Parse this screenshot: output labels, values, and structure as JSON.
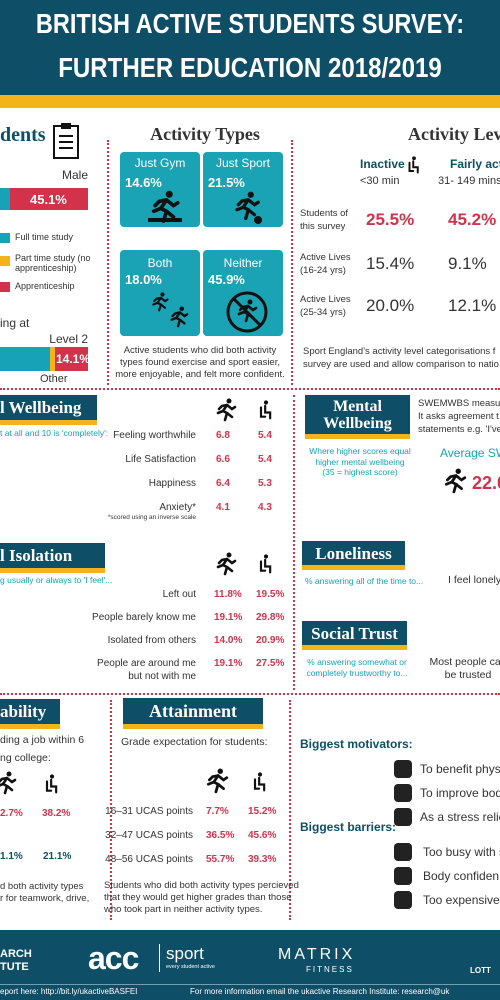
{
  "header": {
    "title_line1": "BRITISH ACTIVE STUDENTS SURVEY:",
    "title_line2": "FURTHER EDUCATION 2018/2019"
  },
  "students": {
    "title": "dents",
    "gender_label": "Male",
    "gender_value": "45.1%",
    "legend": [
      "Full time study",
      "Part time study (no apprenticeship)",
      "Apprenticeship"
    ],
    "level_heading": "ing at",
    "level_label": "Level 2",
    "level_value": "14.1%",
    "other_label": "Other"
  },
  "activity_types": {
    "title": "Activity Types",
    "boxes": [
      {
        "label": "Just Gym",
        "value": "14.6%"
      },
      {
        "label": "Just Sport",
        "value": "21.5%"
      },
      {
        "label": "Both",
        "value": "18.0%"
      },
      {
        "label": "Neither",
        "value": "45.9%"
      }
    ],
    "caption": "Active students who did both activity types found exercise and sport easier, more enjoyable, and felt more confident."
  },
  "activity_levels": {
    "title": "Activity Lev",
    "columns": [
      {
        "label": "Inactive",
        "range": "<30 min"
      },
      {
        "label": "Fairly active",
        "range": "31- 149 mins"
      }
    ],
    "rows": [
      {
        "label": "Students of this survey",
        "values": [
          "25.5%",
          "45.2%"
        ]
      },
      {
        "label": "Active Lives (16-24 yrs)",
        "values": [
          "15.4%",
          "9.1%"
        ]
      },
      {
        "label": "Active Lives (25-34 yrs)",
        "values": [
          "20.0%",
          "12.1%"
        ]
      }
    ],
    "caption": [
      "Sport England's activity level categorisations f",
      "survey are used and allow comparison to natio"
    ]
  },
  "wellbeing": {
    "title": "l Wellbeing",
    "subtitle": "t at all and 10 is 'completely':",
    "rows": [
      {
        "label": "Feeling worthwhile",
        "values": [
          "6.8",
          "5.4"
        ]
      },
      {
        "label": "Life Satisfaction",
        "values": [
          "6.6",
          "5.4"
        ]
      },
      {
        "label": "Happiness",
        "values": [
          "6.4",
          "5.3"
        ]
      },
      {
        "label": "Anxiety*",
        "values": [
          "4.1",
          "4.3"
        ]
      }
    ],
    "footnote": "*scored using an inverse scale"
  },
  "mental_wellbeing": {
    "title": [
      "Mental",
      "Wellbeing"
    ],
    "text": [
      "SWEMWBS measu",
      "It asks agreement t",
      "statements e.g. 'I've"
    ],
    "note": [
      "Where higher scores equal",
      "higher mental wellbeing",
      "(35 = highest score)"
    ],
    "average_label": "Average SW",
    "average_value": "22.0"
  },
  "social_isolation": {
    "title": "l Isolation",
    "subtitle": "g usually or always to 'I feel'...",
    "rows": [
      {
        "label": "Left out",
        "values": [
          "11.8%",
          "19.5%"
        ]
      },
      {
        "label": "People barely know me",
        "values": [
          "19.1%",
          "29.8%"
        ]
      },
      {
        "label": "Isolated from others",
        "values": [
          "14.0%",
          "20.9%"
        ]
      },
      {
        "label": [
          "People are around me",
          "but not with me"
        ],
        "values": [
          "19.1%",
          "27.5%"
        ]
      }
    ]
  },
  "loneliness": {
    "title": "Loneliness",
    "subtitle": "% answering all of the time to...",
    "statement": "I feel lonely"
  },
  "social_trust": {
    "title": "Social Trust",
    "subtitle": [
      "% answering somewhat or",
      "completely trustworthy to..."
    ],
    "statement": [
      "Most people can",
      "be trusted"
    ]
  },
  "employability": {
    "title": "ability",
    "text": [
      "ding a job within 6",
      "ng college:"
    ],
    "values_row1": [
      "2.7%",
      "38.2%"
    ],
    "values_row2": [
      "1.1%",
      "21.1%"
    ],
    "caption": [
      "d both activity types",
      "r for teamwork, drive,"
    ]
  },
  "attainment": {
    "title": "Attainment",
    "subtitle": "Grade expectation for students:",
    "rows": [
      {
        "label": "16–31 UCAS points",
        "values": [
          "7.7%",
          "15.2%"
        ]
      },
      {
        "label": "32–47 UCAS points",
        "values": [
          "36.5%",
          "45.6%"
        ]
      },
      {
        "label": "48–56 UCAS points",
        "values": [
          "55.7%",
          "39.3%"
        ]
      }
    ],
    "caption": [
      "Students who did both activity types percieved",
      "that they would get higher grades than those",
      "who took part in neither activity types."
    ]
  },
  "motivators": {
    "title": "Biggest motivators:",
    "items": [
      "To benefit phys",
      "To improve bod",
      "As a stress relie"
    ]
  },
  "barriers": {
    "title": "Biggest barriers:",
    "items": [
      "Too busy with s",
      "Body confiden",
      "Too expensive"
    ]
  },
  "footer": {
    "logos": [
      "ARCH",
      "TUTE",
      "acc",
      "sport",
      "every student active",
      "MATRIX",
      "FITNESS",
      "LOTT"
    ],
    "link": "eport here: http://bit.ly/ukactiveBASFEI",
    "contact": "For more information email the ukactive Research Institute: research@uk"
  }
}
